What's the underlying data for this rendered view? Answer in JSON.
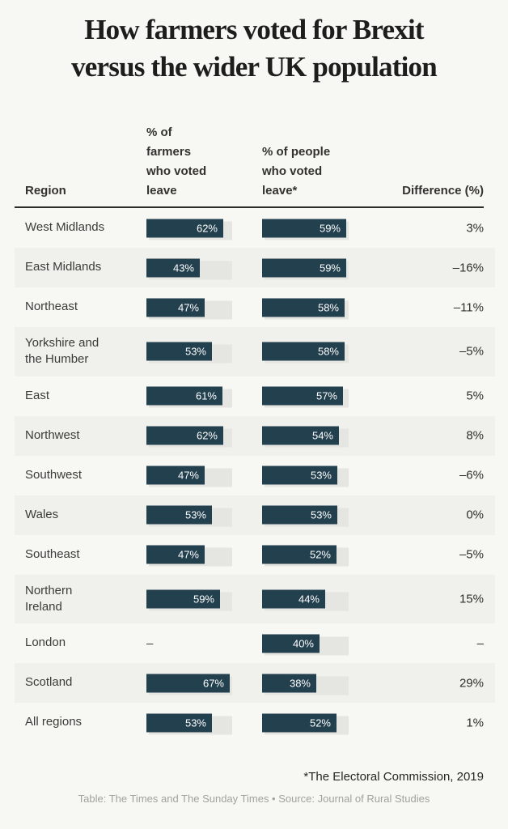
{
  "title": {
    "text": "How farmers voted for Brexit\nversus the wider UK population"
  },
  "header": {
    "region": "Region",
    "farmers": "% of\nfarmers\nwho voted\nleave",
    "people": "% of people\nwho voted\nleave*",
    "difference": "Difference (%)"
  },
  "footnote": "*The Electoral Commission, 2019",
  "credit": "Table: The Times and The Sunday Times • Source: Journal of Rural Studies",
  "null_display": "–",
  "colors": {
    "bar": "#23404f",
    "bar_track": "#e5e5e1",
    "row_alt_band": "#f0f0ed",
    "page_background": "#f7f7f4",
    "bar_label_text": "#ffffff"
  },
  "chart_data": {
    "type": "table",
    "title": "How farmers voted for Brexit versus the wider UK population",
    "columns": [
      "Region",
      "% of farmers who voted leave",
      "% of people who voted leave*",
      "Difference (%)"
    ],
    "bar_columns_axis": {
      "farmers_max": 67,
      "people_max": 59,
      "min": 0
    },
    "rows": [
      {
        "region": "West Midlands",
        "farmers": 62,
        "people": 59,
        "difference": 3
      },
      {
        "region": "East Midlands",
        "farmers": 43,
        "people": 59,
        "difference": -16
      },
      {
        "region": "Northeast",
        "farmers": 47,
        "people": 58,
        "difference": -11
      },
      {
        "region": "Yorkshire and the Humber",
        "farmers": 53,
        "people": 58,
        "difference": -5
      },
      {
        "region": "East",
        "farmers": 61,
        "people": 57,
        "difference": 5
      },
      {
        "region": "Northwest",
        "farmers": 62,
        "people": 54,
        "difference": 8
      },
      {
        "region": "Southwest",
        "farmers": 47,
        "people": 53,
        "difference": -6
      },
      {
        "region": "Wales",
        "farmers": 53,
        "people": 53,
        "difference": 0
      },
      {
        "region": "Southeast",
        "farmers": 47,
        "people": 52,
        "difference": -5
      },
      {
        "region": "Northern Ireland",
        "farmers": 59,
        "people": 44,
        "difference": 15
      },
      {
        "region": "London",
        "farmers": null,
        "people": 40,
        "difference": null
      },
      {
        "region": "Scotland",
        "farmers": 67,
        "people": 38,
        "difference": 29
      },
      {
        "region": "All regions",
        "farmers": 53,
        "people": 52,
        "difference": 1
      }
    ]
  }
}
